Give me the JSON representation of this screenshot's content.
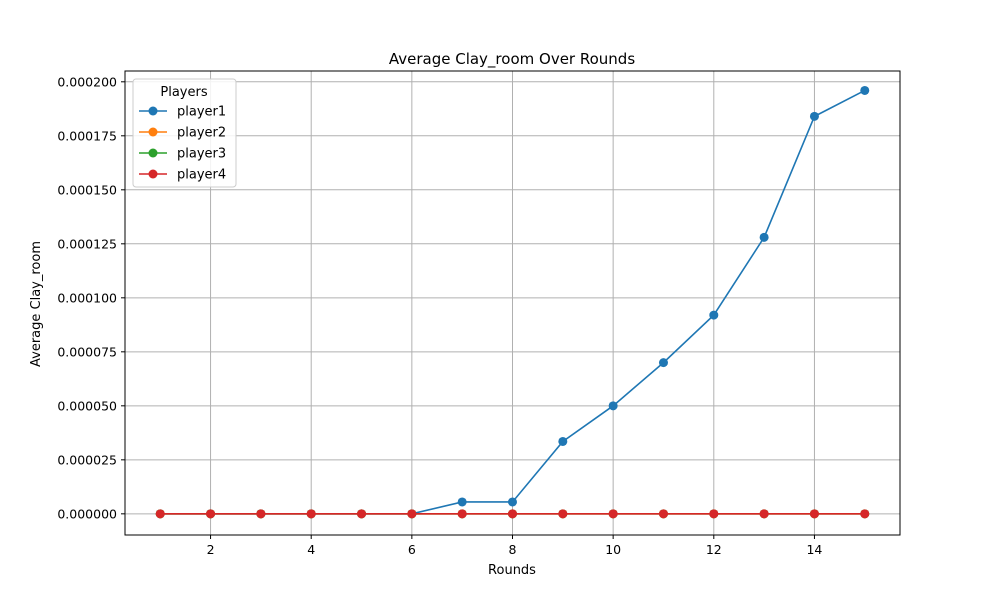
{
  "chart_data": {
    "type": "line",
    "title": "Average Clay_room Over Rounds",
    "xlabel": "Rounds",
    "ylabel": "Average Clay_room",
    "xlim": [
      0.3,
      15.7
    ],
    "ylim": [
      -9.8e-06,
      0.000205
    ],
    "x_ticks": [
      2,
      4,
      6,
      8,
      10,
      12,
      14
    ],
    "y_ticks": [
      0,
      2.5e-05,
      5e-05,
      7.5e-05,
      0.0001,
      0.000125,
      0.00015,
      0.000175,
      0.0002
    ],
    "y_tick_labels": [
      "0.000000",
      "0.000025",
      "0.000050",
      "0.000075",
      "0.000100",
      "0.000125",
      "0.000150",
      "0.000175",
      "0.000200"
    ],
    "grid": true,
    "legend_title": "Players",
    "legend_position": "top-left",
    "x": [
      1,
      2,
      3,
      4,
      5,
      6,
      7,
      8,
      9,
      10,
      11,
      12,
      13,
      14,
      15
    ],
    "series": [
      {
        "name": "player1",
        "color": "#1f77b4",
        "values": [
          0,
          0,
          0,
          0,
          0,
          0,
          5.5e-06,
          5.5e-06,
          3.35e-05,
          5e-05,
          7e-05,
          9.2e-05,
          0.000128,
          0.000184,
          0.000196
        ]
      },
      {
        "name": "player2",
        "color": "#ff7f0e",
        "values": [
          0,
          0,
          0,
          0,
          0,
          0,
          0,
          0,
          0,
          0,
          0,
          0,
          0,
          0,
          0
        ]
      },
      {
        "name": "player3",
        "color": "#2ca02c",
        "values": [
          0,
          0,
          0,
          0,
          0,
          0,
          0,
          0,
          0,
          0,
          0,
          0,
          0,
          0,
          0
        ]
      },
      {
        "name": "player4",
        "color": "#d62728",
        "values": [
          0,
          0,
          0,
          0,
          0,
          0,
          0,
          0,
          0,
          0,
          0,
          0,
          0,
          0,
          0
        ]
      }
    ]
  }
}
